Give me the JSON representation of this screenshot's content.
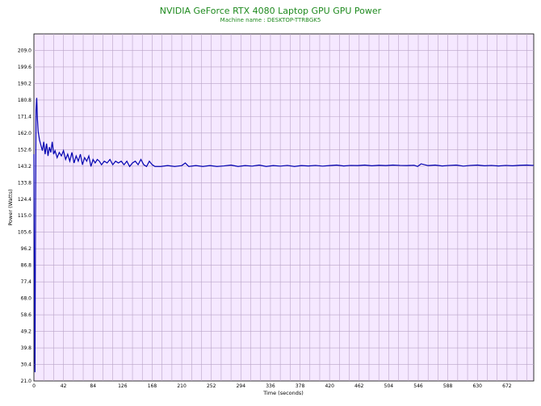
{
  "title": "NVIDIA GeForce RTX 4080 Laptop GPU GPU Power",
  "subtitle": "Machine name : DESKTOP-TTRBGK5",
  "colors": {
    "plot_bg": "#f5e8ff",
    "grid": "#b9a3c7",
    "line": "#0000b0",
    "title": "#1e8a1e"
  },
  "chart_data": {
    "type": "line",
    "title": "NVIDIA GeForce RTX 4080 Laptop GPU GPU Power",
    "subtitle": "Machine name : DESKTOP-TTRBGK5",
    "xlabel": "Time (seconds)",
    "ylabel": "Power (Watts)",
    "xlim": [
      0,
      710
    ],
    "ylim": [
      21.0,
      218.4
    ],
    "xticks": [
      0,
      42,
      84,
      126,
      168,
      210,
      252,
      294,
      336,
      378,
      420,
      462,
      504,
      546,
      588,
      630,
      672
    ],
    "yticks": [
      21.0,
      30.4,
      39.8,
      49.2,
      58.6,
      68.0,
      77.4,
      86.8,
      96.2,
      105.6,
      115.0,
      124.4,
      133.8,
      143.2,
      152.6,
      162.0,
      171.4,
      180.8,
      190.2,
      199.6,
      209.0
    ],
    "grid": true,
    "series": [
      {
        "name": "",
        "x": [
          0,
          1,
          1.5,
          2,
          3,
          4,
          5,
          6,
          8,
          10,
          12,
          14,
          16,
          18,
          20,
          22,
          24,
          26,
          28,
          30,
          33,
          36,
          39,
          42,
          45,
          48,
          51,
          54,
          57,
          60,
          63,
          66,
          69,
          72,
          75,
          78,
          81,
          84,
          87,
          90,
          93,
          96,
          100,
          104,
          108,
          112,
          116,
          120,
          124,
          128,
          132,
          136,
          140,
          144,
          148,
          152,
          156,
          160,
          164,
          168,
          172,
          180,
          190,
          200,
          210,
          215,
          220,
          230,
          240,
          250,
          260,
          270,
          280,
          290,
          300,
          310,
          320,
          330,
          340,
          350,
          360,
          370,
          380,
          390,
          400,
          410,
          420,
          430,
          440,
          450,
          460,
          470,
          480,
          490,
          500,
          510,
          520,
          530,
          540,
          545,
          550,
          560,
          570,
          580,
          590,
          600,
          610,
          620,
          630,
          640,
          650,
          660,
          670,
          680,
          690,
          700,
          710
        ],
        "y": [
          150,
          40,
          26,
          85,
          175,
          182,
          170,
          163,
          158,
          155,
          152,
          157,
          150,
          156,
          149,
          154,
          151,
          157,
          150,
          152,
          148,
          151,
          149,
          152,
          147,
          150,
          146,
          151,
          145,
          149,
          146,
          150,
          144,
          148,
          146,
          149,
          143,
          147,
          145,
          147,
          146,
          144,
          146,
          145,
          147,
          144,
          146,
          145,
          146,
          144,
          146,
          143,
          145,
          146,
          144,
          147,
          144,
          143,
          146,
          144,
          143,
          143,
          143.5,
          143,
          143.5,
          145,
          143,
          143.5,
          143,
          143.5,
          143,
          143.3,
          143.8,
          143,
          143.5,
          143.2,
          143.8,
          143,
          143.5,
          143.2,
          143.6,
          143,
          143.5,
          143.3,
          143.6,
          143.2,
          143.5,
          143.8,
          143.3,
          143.6,
          143.5,
          143.8,
          143.4,
          143.7,
          143.5,
          143.8,
          143.6,
          143.5,
          143.7,
          143,
          144.5,
          143.5,
          143.8,
          143.3,
          143.6,
          143.8,
          143.2,
          143.6,
          143.8,
          143.4,
          143.6,
          143.3,
          143.6,
          143.4,
          143.7,
          143.8,
          143.6
        ]
      }
    ]
  }
}
